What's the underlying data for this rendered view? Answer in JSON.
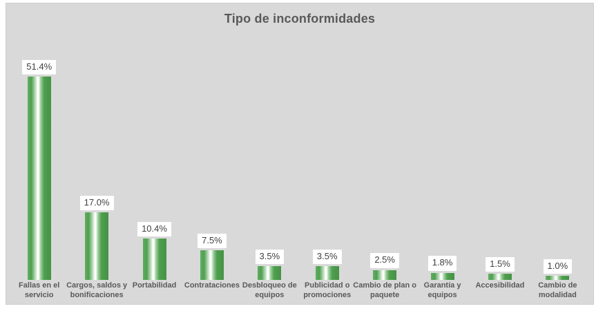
{
  "chart_data": {
    "type": "bar",
    "title": "Tipo de inconformidades",
    "categories": [
      "Fallas en el servicio",
      "Cargos, saldos y bonificaciones",
      "Portabilidad",
      "Contrataciones",
      "Desbloqueo de equipos",
      "Publicidad o promociones",
      "Cambio de plan o paquete",
      "Garantía y equipos",
      "Accesibilidad",
      "Cambio de modalidad"
    ],
    "values": [
      51.4,
      17.0,
      10.4,
      7.5,
      3.5,
      3.5,
      2.5,
      1.8,
      1.5,
      1.0
    ],
    "value_labels": [
      "51.4%",
      "17.0%",
      "10.4%",
      "7.5%",
      "3.5%",
      "3.5%",
      "2.5%",
      "1.8%",
      "1.5%",
      "1.0%"
    ],
    "xlabel": "",
    "ylabel": "",
    "ylim": [
      0,
      56
    ],
    "grid": false,
    "legend": false,
    "orientation": "vertical",
    "data_label_style": "white boxes above bars"
  },
  "colors": {
    "chart_background": "#d9d9d9",
    "chart_border": "#cccccc",
    "title_text": "#595959",
    "category_text": "#595959",
    "value_text": "#404040",
    "value_box_background": "#ffffff",
    "bar_green": "#4f9f4f",
    "bar_green_edge": "#63ad63",
    "bar_green_dark": "#459245",
    "bar_highlight": "#ffffff"
  }
}
